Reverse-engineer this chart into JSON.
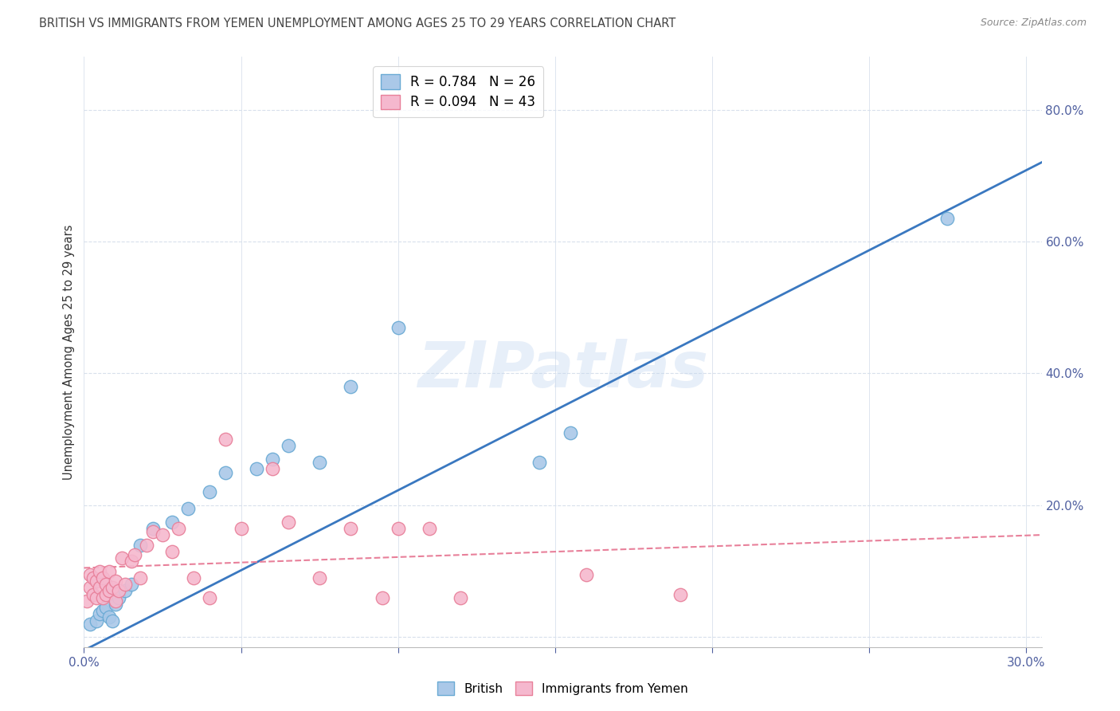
{
  "title": "BRITISH VS IMMIGRANTS FROM YEMEN UNEMPLOYMENT AMONG AGES 25 TO 29 YEARS CORRELATION CHART",
  "source": "Source: ZipAtlas.com",
  "ylabel": "Unemployment Among Ages 25 to 29 years",
  "xlim": [
    0.0,
    0.305
  ],
  "ylim": [
    -0.015,
    0.88
  ],
  "xticks": [
    0.0,
    0.05,
    0.1,
    0.15,
    0.2,
    0.25,
    0.3
  ],
  "yticks_right": [
    0.0,
    0.2,
    0.4,
    0.6,
    0.8
  ],
  "watermark": "ZIPatlas",
  "british_color": "#aac8e8",
  "yemen_color": "#f5b8ce",
  "british_edge": "#6aaad4",
  "yemen_edge": "#e8809a",
  "trend_british_color": "#3a78c0",
  "trend_yemen_color": "#e8809a",
  "background_color": "#ffffff",
  "grid_color": "#d8e0ec",
  "british_x": [
    0.002,
    0.004,
    0.005,
    0.006,
    0.007,
    0.008,
    0.009,
    0.01,
    0.011,
    0.013,
    0.015,
    0.018,
    0.022,
    0.028,
    0.033,
    0.04,
    0.045,
    0.055,
    0.06,
    0.065,
    0.075,
    0.085,
    0.1,
    0.145,
    0.155,
    0.275
  ],
  "british_y": [
    0.02,
    0.025,
    0.035,
    0.04,
    0.045,
    0.03,
    0.025,
    0.05,
    0.06,
    0.07,
    0.08,
    0.14,
    0.165,
    0.175,
    0.195,
    0.22,
    0.25,
    0.255,
    0.27,
    0.29,
    0.265,
    0.38,
    0.47,
    0.265,
    0.31,
    0.635
  ],
  "yemen_x": [
    0.001,
    0.002,
    0.002,
    0.003,
    0.003,
    0.004,
    0.004,
    0.005,
    0.005,
    0.006,
    0.006,
    0.007,
    0.007,
    0.008,
    0.008,
    0.009,
    0.01,
    0.01,
    0.011,
    0.012,
    0.013,
    0.015,
    0.016,
    0.018,
    0.02,
    0.022,
    0.025,
    0.028,
    0.03,
    0.035,
    0.04,
    0.045,
    0.05,
    0.06,
    0.065,
    0.075,
    0.085,
    0.095,
    0.1,
    0.11,
    0.12,
    0.16,
    0.19
  ],
  "yemen_y": [
    0.055,
    0.075,
    0.095,
    0.065,
    0.09,
    0.06,
    0.085,
    0.075,
    0.1,
    0.06,
    0.09,
    0.065,
    0.08,
    0.07,
    0.1,
    0.075,
    0.055,
    0.085,
    0.07,
    0.12,
    0.08,
    0.115,
    0.125,
    0.09,
    0.14,
    0.16,
    0.155,
    0.13,
    0.165,
    0.09,
    0.06,
    0.3,
    0.165,
    0.255,
    0.175,
    0.09,
    0.165,
    0.06,
    0.165,
    0.165,
    0.06,
    0.095,
    0.065
  ],
  "brit_trend_x0": 0.0,
  "brit_trend_y0": -0.02,
  "brit_trend_x1": 0.305,
  "brit_trend_y1": 0.72,
  "yemen_trend_x0": 0.0,
  "yemen_trend_y0": 0.105,
  "yemen_trend_x1": 0.305,
  "yemen_trend_y1": 0.155
}
